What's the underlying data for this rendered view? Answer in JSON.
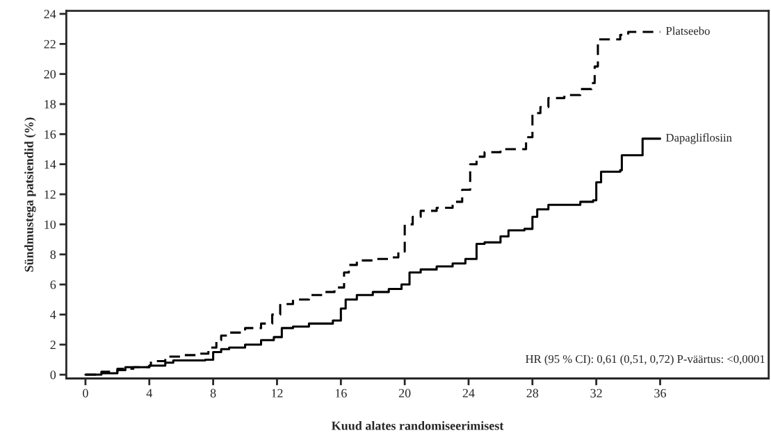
{
  "chart_data": {
    "type": "step",
    "xlabel": "Kuud alates randomiseerimisest",
    "ylabel": "Sündmustega patsiendid (%)",
    "xlim": [
      -1.2,
      42.8
    ],
    "ylim": [
      -0.25,
      24.2
    ],
    "xticks": [
      0,
      4,
      8,
      12,
      16,
      20,
      24,
      28,
      32,
      36
    ],
    "yticks": [
      0,
      2,
      4,
      6,
      8,
      10,
      12,
      14,
      16,
      18,
      20,
      22,
      24
    ],
    "grid": false,
    "legend": false,
    "annotations": [
      "HR (95 % CI): 0,61 (0,51, 0,72) P-väärtus: <0,0001"
    ],
    "series": [
      {
        "name": "Platseebo",
        "color": "#000000",
        "line_style": "dashed",
        "x": [
          0,
          1,
          2,
          3,
          4,
          4.1,
          5,
          6,
          7,
          7.7,
          8.2,
          8.5,
          9,
          10,
          11,
          11.7,
          12.2,
          13,
          14,
          15,
          15.6,
          16.2,
          16.5,
          17,
          18,
          19,
          19.6,
          20,
          20.5,
          21,
          22,
          23,
          23.6,
          24.1,
          24.5,
          25,
          26,
          27.6,
          28,
          28.5,
          29,
          30,
          31,
          31.7,
          31.9,
          32.1,
          33.5,
          34,
          36
        ],
        "values": [
          0,
          0.2,
          0.4,
          0.5,
          0.6,
          0.9,
          1.2,
          1.3,
          1.4,
          1.8,
          2.3,
          2.6,
          2.8,
          3.1,
          3.4,
          4.0,
          4.7,
          5.0,
          5.3,
          5.5,
          5.8,
          6.8,
          7.3,
          7.6,
          7.7,
          7.8,
          8.2,
          10.0,
          10.5,
          10.9,
          11.1,
          11.5,
          12.3,
          14.0,
          14.5,
          14.8,
          15.0,
          15.8,
          17.4,
          17.8,
          18.4,
          18.6,
          19.0,
          19.4,
          20.5,
          22.3,
          22.6,
          22.8,
          22.8
        ]
      },
      {
        "name": "Dapagliflosiin",
        "color": "#000000",
        "line_style": "solid",
        "x": [
          0,
          1,
          2,
          2.5,
          4,
          5,
          5.5,
          7.5,
          8,
          8.5,
          9,
          10,
          11,
          11.8,
          12.3,
          13,
          14,
          15.5,
          16,
          16.3,
          17,
          18,
          19,
          19.8,
          20.3,
          21,
          22,
          23,
          23.8,
          24.5,
          25,
          26,
          26.5,
          27.5,
          28,
          28.3,
          29,
          31,
          31.8,
          32,
          32.3,
          33.5,
          33.6,
          34.8,
          34.9,
          36
        ],
        "values": [
          0,
          0.1,
          0.3,
          0.5,
          0.6,
          0.8,
          0.95,
          1.0,
          1.5,
          1.7,
          1.8,
          2.0,
          2.3,
          2.5,
          3.1,
          3.2,
          3.4,
          3.6,
          4.4,
          5.0,
          5.3,
          5.5,
          5.7,
          6.0,
          6.8,
          7.0,
          7.2,
          7.4,
          7.7,
          8.7,
          8.8,
          9.2,
          9.6,
          9.7,
          10.5,
          11.0,
          11.3,
          11.5,
          11.6,
          12.8,
          13.5,
          13.6,
          14.6,
          14.6,
          15.7,
          15.7
        ]
      }
    ]
  }
}
